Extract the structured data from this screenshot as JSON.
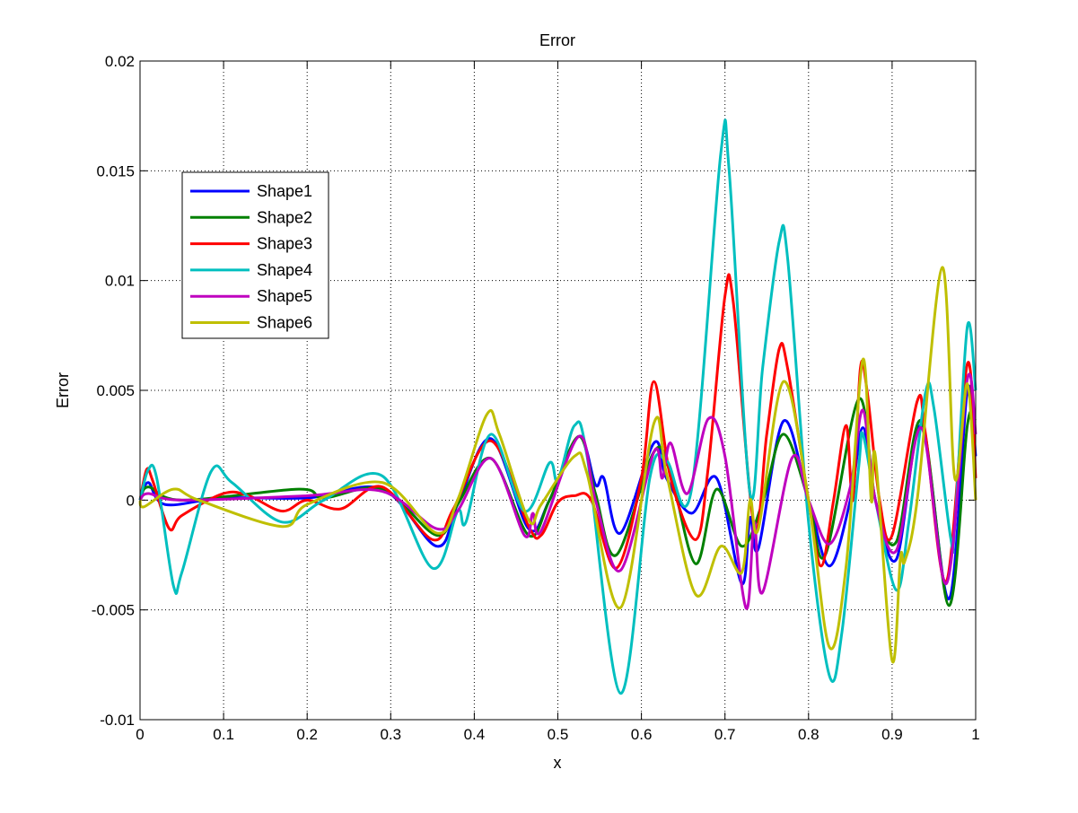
{
  "chart_data": {
    "type": "line",
    "title": "Error",
    "xlabel": "x",
    "ylabel": "Error",
    "xlim": [
      0,
      1
    ],
    "ylim": [
      -0.01,
      0.02
    ],
    "xticks": [
      0,
      0.1,
      0.2,
      0.3,
      0.4,
      0.5,
      0.6,
      0.7,
      0.8,
      0.9,
      1
    ],
    "xtick_labels": [
      "0",
      "0.1",
      "0.2",
      "0.3",
      "0.4",
      "0.5",
      "0.6",
      "0.7",
      "0.8",
      "0.9",
      "1"
    ],
    "yticks": [
      -0.01,
      -0.005,
      0,
      0.005,
      0.01,
      0.015,
      0.02
    ],
    "ytick_labels": [
      "-0.01",
      "-0.005",
      "0",
      "0.005",
      "0.01",
      "0.015",
      "0.02"
    ],
    "grid": true,
    "legend_position": "upper-left",
    "series": [
      {
        "name": "Shape1",
        "color": "#0000ff",
        "points": [
          [
            0,
            0
          ],
          [
            0.01,
            0.0008
          ],
          [
            0.03,
            -0.0002
          ],
          [
            0.1,
            0.0001
          ],
          [
            0.2,
            0.0001
          ],
          [
            0.29,
            0.0005
          ],
          [
            0.355,
            -0.0021
          ],
          [
            0.38,
            -0.0002
          ],
          [
            0.42,
            0.0028
          ],
          [
            0.465,
            -0.0013
          ],
          [
            0.49,
            0
          ],
          [
            0.525,
            0.0029
          ],
          [
            0.545,
            0.0007
          ],
          [
            0.555,
            0.001
          ],
          [
            0.575,
            -0.0015
          ],
          [
            0.615,
            0.0026
          ],
          [
            0.63,
            0.001
          ],
          [
            0.66,
            -0.0006
          ],
          [
            0.69,
            0.001
          ],
          [
            0.72,
            -0.0038
          ],
          [
            0.73,
            -0.0008
          ],
          [
            0.74,
            -0.0022
          ],
          [
            0.77,
            0.0036
          ],
          [
            0.8,
            0
          ],
          [
            0.825,
            -0.003
          ],
          [
            0.85,
            0
          ],
          [
            0.865,
            0.0033
          ],
          [
            0.88,
            0
          ],
          [
            0.905,
            -0.0027
          ],
          [
            0.935,
            0.0034
          ],
          [
            0.968,
            -0.0045
          ],
          [
            0.99,
            0.005
          ],
          [
            1,
            0.002
          ]
        ]
      },
      {
        "name": "Shape2",
        "color": "#008000",
        "points": [
          [
            0,
            0
          ],
          [
            0.01,
            0.0006
          ],
          [
            0.05,
            0
          ],
          [
            0.19,
            0.0005
          ],
          [
            0.22,
            0.0001
          ],
          [
            0.29,
            0.0005
          ],
          [
            0.355,
            -0.0016
          ],
          [
            0.38,
            -0.0002
          ],
          [
            0.42,
            0.0019
          ],
          [
            0.465,
            -0.0016
          ],
          [
            0.49,
            0
          ],
          [
            0.525,
            0.0029
          ],
          [
            0.545,
            0.0003
          ],
          [
            0.57,
            -0.0025
          ],
          [
            0.615,
            0.0022
          ],
          [
            0.635,
            0.0012
          ],
          [
            0.665,
            -0.0029
          ],
          [
            0.69,
            0.0005
          ],
          [
            0.72,
            -0.0021
          ],
          [
            0.745,
            -0.0001
          ],
          [
            0.77,
            0.003
          ],
          [
            0.8,
            0
          ],
          [
            0.82,
            -0.0025
          ],
          [
            0.86,
            0.0046
          ],
          [
            0.88,
            0
          ],
          [
            0.905,
            -0.0019
          ],
          [
            0.935,
            0.0036
          ],
          [
            0.968,
            -0.0048
          ],
          [
            0.99,
            0.0034
          ],
          [
            1,
            0.0036
          ]
        ]
      },
      {
        "name": "Shape3",
        "color": "#ff0000",
        "points": [
          [
            0,
            0
          ],
          [
            0.008,
            0.0014
          ],
          [
            0.015,
            0.0009
          ],
          [
            0.035,
            -0.0013
          ],
          [
            0.05,
            -0.0007
          ],
          [
            0.1,
            0.0003
          ],
          [
            0.13,
            0.0002
          ],
          [
            0.17,
            -0.0005
          ],
          [
            0.2,
            0
          ],
          [
            0.24,
            -0.0004
          ],
          [
            0.29,
            0.0006
          ],
          [
            0.35,
            -0.0018
          ],
          [
            0.375,
            -0.0004
          ],
          [
            0.42,
            0.0027
          ],
          [
            0.465,
            -0.0012
          ],
          [
            0.48,
            -0.0016
          ],
          [
            0.5,
            -0.0001
          ],
          [
            0.52,
            0.0002
          ],
          [
            0.54,
            0
          ],
          [
            0.57,
            -0.0031
          ],
          [
            0.6,
            0.001
          ],
          [
            0.615,
            0.0054
          ],
          [
            0.635,
            0.001
          ],
          [
            0.665,
            -0.0018
          ],
          [
            0.68,
            0.0015
          ],
          [
            0.7,
            0.0093
          ],
          [
            0.71,
            0.009
          ],
          [
            0.735,
            -0.0012
          ],
          [
            0.75,
            0.003
          ],
          [
            0.765,
            0.0069
          ],
          [
            0.775,
            0.006
          ],
          [
            0.8,
            0
          ],
          [
            0.815,
            -0.003
          ],
          [
            0.83,
            0
          ],
          [
            0.845,
            0.0034
          ],
          [
            0.853,
            0
          ],
          [
            0.862,
            0.006
          ],
          [
            0.87,
            0.005
          ],
          [
            0.885,
            0
          ],
          [
            0.9,
            -0.0016
          ],
          [
            0.93,
            0.0045
          ],
          [
            0.94,
            0.003
          ],
          [
            0.965,
            -0.0037
          ],
          [
            0.99,
            0.0062
          ],
          [
            1,
            0.001
          ]
        ]
      },
      {
        "name": "Shape4",
        "color": "#00bfbf",
        "points": [
          [
            0,
            0
          ],
          [
            0.01,
            0.0014
          ],
          [
            0.02,
            0.001
          ],
          [
            0.04,
            -0.0039
          ],
          [
            0.05,
            -0.0033
          ],
          [
            0.085,
            0.0013
          ],
          [
            0.11,
            0.0008
          ],
          [
            0.17,
            -0.001
          ],
          [
            0.22,
            0
          ],
          [
            0.29,
            0.0011
          ],
          [
            0.35,
            -0.0031
          ],
          [
            0.38,
            -0.0005
          ],
          [
            0.39,
            -0.001
          ],
          [
            0.42,
            0.003
          ],
          [
            0.46,
            -0.0005
          ],
          [
            0.49,
            0.0017
          ],
          [
            0.5,
            0.0009
          ],
          [
            0.52,
            0.0034
          ],
          [
            0.535,
            0.002
          ],
          [
            0.575,
            -0.0088
          ],
          [
            0.61,
            0.001
          ],
          [
            0.63,
            0.0018
          ],
          [
            0.66,
            0.0005
          ],
          [
            0.695,
            0.0158
          ],
          [
            0.705,
            0.015
          ],
          [
            0.73,
            0.0003
          ],
          [
            0.745,
            0.006
          ],
          [
            0.765,
            0.0118
          ],
          [
            0.775,
            0.011
          ],
          [
            0.8,
            -0.001
          ],
          [
            0.825,
            -0.008
          ],
          [
            0.84,
            -0.006
          ],
          [
            0.86,
            0.0015
          ],
          [
            0.865,
            0.003
          ],
          [
            0.88,
            0
          ],
          [
            0.905,
            -0.0041
          ],
          [
            0.92,
            -0.001
          ],
          [
            0.94,
            0.0049
          ],
          [
            0.95,
            0.0042
          ],
          [
            0.97,
            -0.0017
          ],
          [
            0.975,
            -0.0012
          ],
          [
            0.99,
            0.0079
          ],
          [
            1,
            0.005
          ]
        ]
      },
      {
        "name": "Shape5",
        "color": "#bf00bf",
        "points": [
          [
            0,
            0
          ],
          [
            0.01,
            0.0003
          ],
          [
            0.05,
            0
          ],
          [
            0.2,
            0.0002
          ],
          [
            0.29,
            0.0004
          ],
          [
            0.355,
            -0.0013
          ],
          [
            0.38,
            -0.0005
          ],
          [
            0.42,
            0.0019
          ],
          [
            0.46,
            -0.0016
          ],
          [
            0.47,
            -0.0006
          ],
          [
            0.48,
            -0.0014
          ],
          [
            0.525,
            0.0029
          ],
          [
            0.545,
            0
          ],
          [
            0.575,
            -0.0032
          ],
          [
            0.615,
            0.0022
          ],
          [
            0.625,
            0.001
          ],
          [
            0.635,
            0.0026
          ],
          [
            0.655,
            0.0003
          ],
          [
            0.68,
            0.0037
          ],
          [
            0.7,
            0.002
          ],
          [
            0.725,
            -0.0049
          ],
          [
            0.735,
            -0.001
          ],
          [
            0.745,
            -0.0042
          ],
          [
            0.78,
            0.0019
          ],
          [
            0.8,
            0
          ],
          [
            0.825,
            -0.002
          ],
          [
            0.85,
            0.0006
          ],
          [
            0.865,
            0.0041
          ],
          [
            0.88,
            0
          ],
          [
            0.905,
            -0.0023
          ],
          [
            0.935,
            0.0033
          ],
          [
            0.965,
            -0.0038
          ],
          [
            0.99,
            0.0055
          ],
          [
            1,
            0.003
          ]
        ]
      },
      {
        "name": "Shape6",
        "color": "#bfbf00",
        "points": [
          [
            0,
            0
          ],
          [
            0.005,
            -0.0003
          ],
          [
            0.04,
            0.0005
          ],
          [
            0.07,
            0
          ],
          [
            0.17,
            -0.0012
          ],
          [
            0.2,
            -0.0002
          ],
          [
            0.29,
            0.0008
          ],
          [
            0.355,
            -0.0015
          ],
          [
            0.38,
            0
          ],
          [
            0.415,
            0.0039
          ],
          [
            0.43,
            0.003
          ],
          [
            0.465,
            -0.0009
          ],
          [
            0.48,
            -0.0002
          ],
          [
            0.52,
            0.002
          ],
          [
            0.535,
            0.0012
          ],
          [
            0.575,
            -0.0049
          ],
          [
            0.615,
            0.0035
          ],
          [
            0.63,
            0.0012
          ],
          [
            0.665,
            -0.0043
          ],
          [
            0.695,
            -0.0021
          ],
          [
            0.72,
            -0.0033
          ],
          [
            0.73,
            0
          ],
          [
            0.74,
            -0.0013
          ],
          [
            0.77,
            0.0054
          ],
          [
            0.8,
            0
          ],
          [
            0.825,
            -0.0067
          ],
          [
            0.845,
            -0.003
          ],
          [
            0.865,
            0.0064
          ],
          [
            0.875,
            0
          ],
          [
            0.88,
            0.002
          ],
          [
            0.9,
            -0.0073
          ],
          [
            0.91,
            -0.0026
          ],
          [
            0.915,
            -0.0028
          ],
          [
            0.93,
            0
          ],
          [
            0.96,
            0.0106
          ],
          [
            0.975,
            0.001
          ],
          [
            0.99,
            0.0053
          ],
          [
            1,
            0
          ]
        ]
      }
    ]
  }
}
